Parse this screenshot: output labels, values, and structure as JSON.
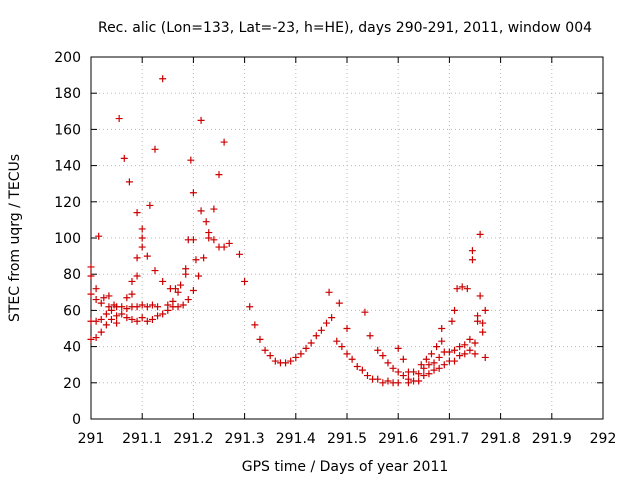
{
  "chart_data": {
    "type": "scatter",
    "title": "Rec. alic (Lon=133, Lat=-23, h=HE), days 290-291, 2011, window 004",
    "xlabel": "GPS time / Days of year 2011",
    "ylabel": "STEC from uqrg / TECUs",
    "xlim": [
      291,
      292
    ],
    "ylim": [
      0,
      200
    ],
    "x_ticks": [
      "291",
      "291.1",
      "291.2",
      "291.3",
      "291.4",
      "291.5",
      "291.6",
      "291.7",
      "291.8",
      "291.9",
      "292"
    ],
    "y_ticks": [
      "0",
      "20",
      "40",
      "60",
      "80",
      "100",
      "120",
      "140",
      "160",
      "180",
      "200"
    ],
    "grid": true,
    "marker": "+",
    "marker_color": "#cc0000",
    "series": [
      {
        "name": "STEC",
        "points": [
          [
            291.0,
            44
          ],
          [
            291.0,
            54
          ],
          [
            291.0,
            69
          ],
          [
            291.0,
            79
          ],
          [
            291.0,
            84
          ],
          [
            291.01,
            45
          ],
          [
            291.01,
            54
          ],
          [
            291.01,
            66
          ],
          [
            291.01,
            72
          ],
          [
            291.015,
            101
          ],
          [
            291.02,
            48
          ],
          [
            291.02,
            55
          ],
          [
            291.02,
            64
          ],
          [
            291.025,
            67
          ],
          [
            291.03,
            52
          ],
          [
            291.03,
            58
          ],
          [
            291.035,
            62
          ],
          [
            291.035,
            68
          ],
          [
            291.04,
            55
          ],
          [
            291.04,
            60
          ],
          [
            291.045,
            63
          ],
          [
            291.05,
            53
          ],
          [
            291.05,
            57
          ],
          [
            291.05,
            62
          ],
          [
            291.055,
            166
          ],
          [
            291.06,
            58
          ],
          [
            291.06,
            62
          ],
          [
            291.065,
            144
          ],
          [
            291.07,
            56
          ],
          [
            291.07,
            61
          ],
          [
            291.07,
            67
          ],
          [
            291.075,
            131
          ],
          [
            291.08,
            55
          ],
          [
            291.08,
            62
          ],
          [
            291.08,
            69
          ],
          [
            291.08,
            76
          ],
          [
            291.09,
            54
          ],
          [
            291.09,
            62
          ],
          [
            291.09,
            79
          ],
          [
            291.09,
            89
          ],
          [
            291.09,
            114
          ],
          [
            291.1,
            56
          ],
          [
            291.1,
            63
          ],
          [
            291.1,
            95
          ],
          [
            291.1,
            100
          ],
          [
            291.1,
            105
          ],
          [
            291.11,
            54
          ],
          [
            291.11,
            62
          ],
          [
            291.11,
            90
          ],
          [
            291.115,
            118
          ],
          [
            291.12,
            55
          ],
          [
            291.12,
            63
          ],
          [
            291.125,
            82
          ],
          [
            291.125,
            149
          ],
          [
            291.13,
            57
          ],
          [
            291.13,
            62
          ],
          [
            291.14,
            58
          ],
          [
            291.14,
            76
          ],
          [
            291.14,
            188
          ],
          [
            291.15,
            60
          ],
          [
            291.15,
            63
          ],
          [
            291.155,
            72
          ],
          [
            291.16,
            62
          ],
          [
            291.16,
            65
          ],
          [
            291.165,
            72
          ],
          [
            291.17,
            62
          ],
          [
            291.17,
            70
          ],
          [
            291.175,
            74
          ],
          [
            291.18,
            63
          ],
          [
            291.185,
            80
          ],
          [
            291.185,
            83
          ],
          [
            291.19,
            66
          ],
          [
            291.19,
            99
          ],
          [
            291.195,
            143
          ],
          [
            291.2,
            71
          ],
          [
            291.2,
            99
          ],
          [
            291.2,
            125
          ],
          [
            291.205,
            88
          ],
          [
            291.21,
            79
          ],
          [
            291.215,
            115
          ],
          [
            291.215,
            165
          ],
          [
            291.22,
            89
          ],
          [
            291.225,
            109
          ],
          [
            291.23,
            100
          ],
          [
            291.23,
            103
          ],
          [
            291.24,
            116
          ],
          [
            291.24,
            99
          ],
          [
            291.25,
            135
          ],
          [
            291.25,
            95
          ],
          [
            291.26,
            153
          ],
          [
            291.26,
            95
          ],
          [
            291.27,
            97
          ],
          [
            291.29,
            91
          ],
          [
            291.3,
            76
          ],
          [
            291.31,
            62
          ],
          [
            291.32,
            52
          ],
          [
            291.33,
            44
          ],
          [
            291.34,
            38
          ],
          [
            291.35,
            35
          ],
          [
            291.36,
            32
          ],
          [
            291.37,
            31
          ],
          [
            291.38,
            31
          ],
          [
            291.39,
            32
          ],
          [
            291.4,
            34
          ],
          [
            291.41,
            36
          ],
          [
            291.42,
            39
          ],
          [
            291.43,
            42
          ],
          [
            291.44,
            46
          ],
          [
            291.45,
            49
          ],
          [
            291.46,
            53
          ],
          [
            291.465,
            70
          ],
          [
            291.47,
            56
          ],
          [
            291.48,
            43
          ],
          [
            291.485,
            64
          ],
          [
            291.49,
            40
          ],
          [
            291.5,
            50
          ],
          [
            291.5,
            36
          ],
          [
            291.51,
            33
          ],
          [
            291.52,
            29
          ],
          [
            291.53,
            27
          ],
          [
            291.54,
            24
          ],
          [
            291.55,
            22
          ],
          [
            291.56,
            22
          ],
          [
            291.57,
            20
          ],
          [
            291.58,
            21
          ],
          [
            291.59,
            20
          ],
          [
            291.6,
            20
          ],
          [
            291.535,
            59
          ],
          [
            291.545,
            46
          ],
          [
            291.56,
            38
          ],
          [
            291.57,
            35
          ],
          [
            291.58,
            31
          ],
          [
            291.59,
            28
          ],
          [
            291.6,
            26
          ],
          [
            291.6,
            39
          ],
          [
            291.61,
            24
          ],
          [
            291.61,
            33
          ],
          [
            291.62,
            20
          ],
          [
            291.62,
            26
          ],
          [
            291.62,
            22
          ],
          [
            291.63,
            21
          ],
          [
            291.63,
            26
          ],
          [
            291.64,
            21
          ],
          [
            291.64,
            25
          ],
          [
            291.645,
            30
          ],
          [
            291.65,
            24
          ],
          [
            291.65,
            28
          ],
          [
            291.655,
            33
          ],
          [
            291.66,
            25
          ],
          [
            291.66,
            30
          ],
          [
            291.665,
            36
          ],
          [
            291.67,
            27
          ],
          [
            291.67,
            31
          ],
          [
            291.675,
            40
          ],
          [
            291.68,
            28
          ],
          [
            291.68,
            34
          ],
          [
            291.685,
            43
          ],
          [
            291.685,
            50
          ],
          [
            291.69,
            30
          ],
          [
            291.69,
            37
          ],
          [
            291.7,
            32
          ],
          [
            291.7,
            37
          ],
          [
            291.705,
            54
          ],
          [
            291.71,
            32
          ],
          [
            291.71,
            38
          ],
          [
            291.71,
            60
          ],
          [
            291.715,
            72
          ],
          [
            291.72,
            35
          ],
          [
            291.72,
            40
          ],
          [
            291.725,
            73
          ],
          [
            291.73,
            36
          ],
          [
            291.73,
            41
          ],
          [
            291.735,
            72
          ],
          [
            291.74,
            38
          ],
          [
            291.74,
            44
          ],
          [
            291.745,
            88
          ],
          [
            291.745,
            93
          ],
          [
            291.75,
            36
          ],
          [
            291.75,
            42
          ],
          [
            291.755,
            54
          ],
          [
            291.755,
            57
          ],
          [
            291.76,
            68
          ],
          [
            291.76,
            102
          ],
          [
            291.765,
            48
          ],
          [
            291.765,
            53
          ],
          [
            291.77,
            60
          ],
          [
            291.77,
            34
          ]
        ]
      }
    ]
  }
}
